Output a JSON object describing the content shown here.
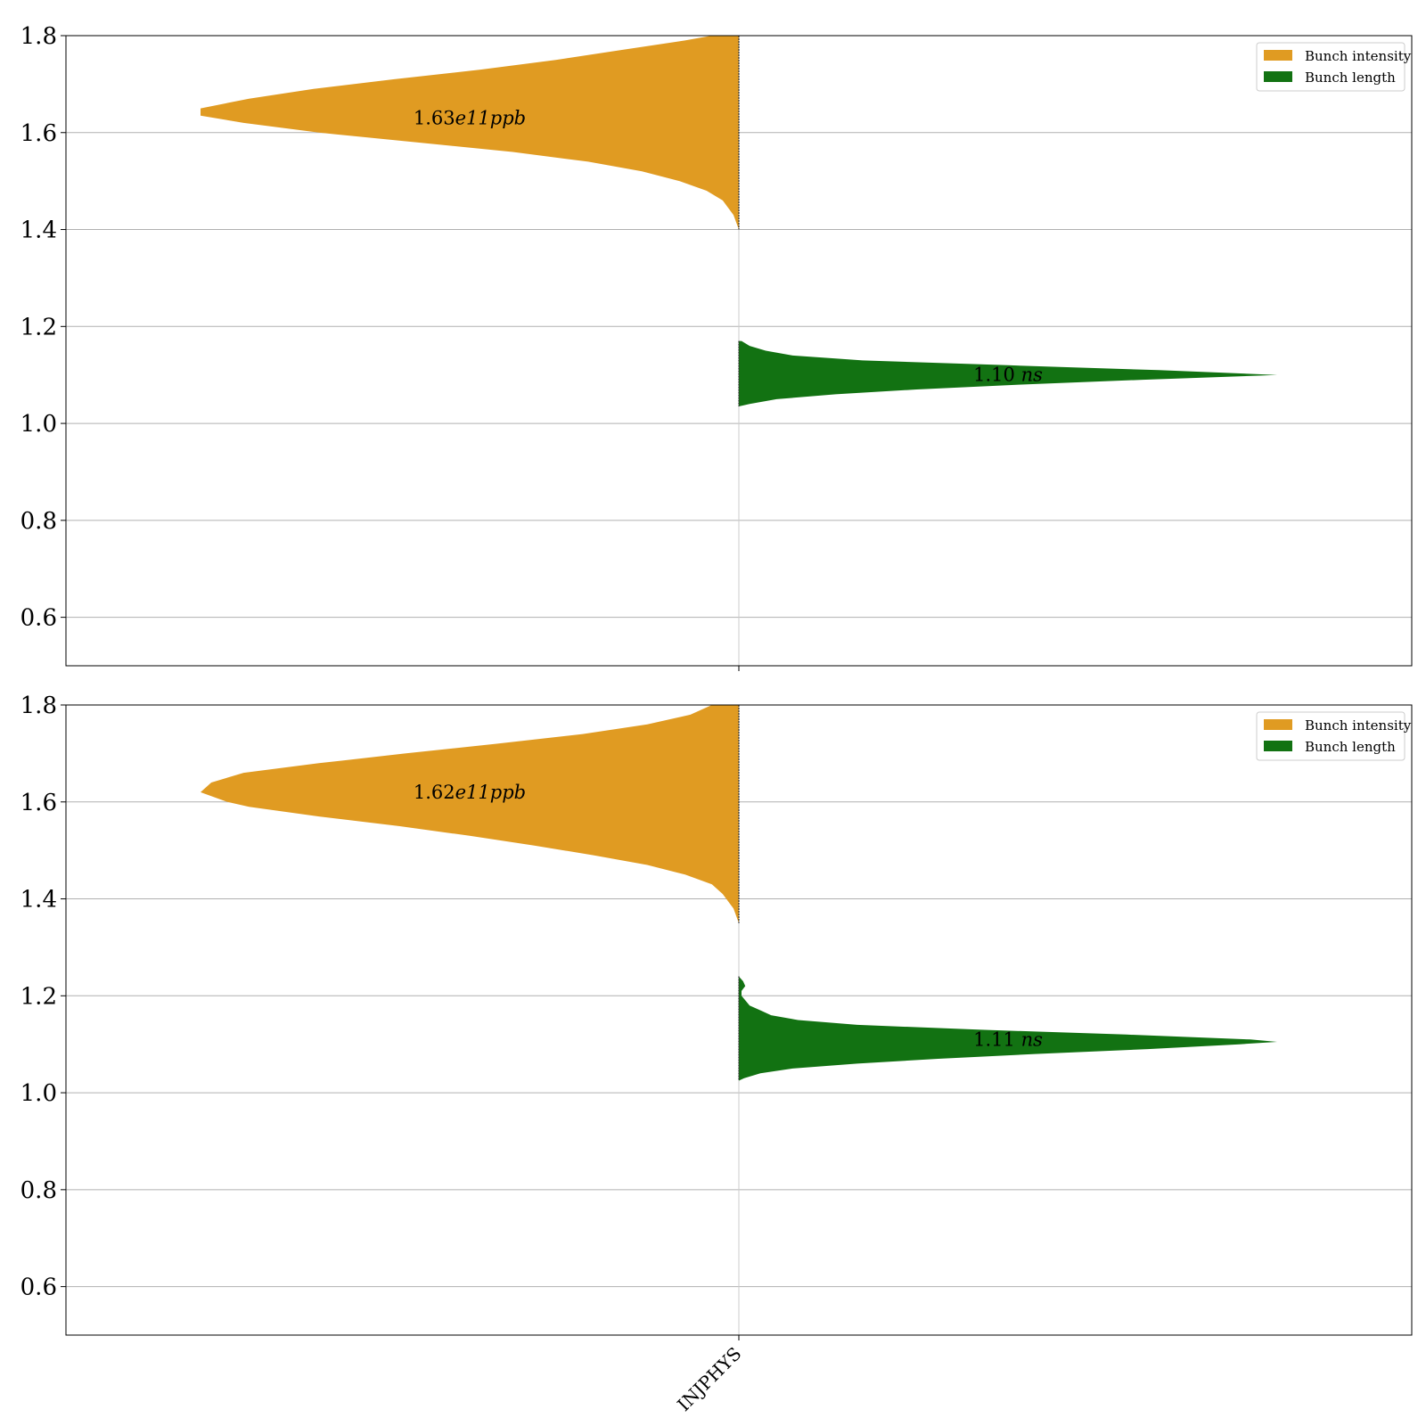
{
  "chart_data": [
    {
      "type": "violin",
      "subplot": "top",
      "categories": [
        "INJPHYS"
      ],
      "ylim": [
        0.5,
        1.8
      ],
      "yticks": [
        "0.6",
        "0.8",
        "1.0",
        "1.2",
        "1.4",
        "1.6",
        "1.8"
      ],
      "show_xtick_labels": false,
      "grid": true,
      "legend_position": "top-right",
      "series": [
        {
          "name": "Bunch intensity",
          "color": "#e09b22",
          "side": "left",
          "median": 1.63,
          "profile": [
            [
              1.4,
              0.0
            ],
            [
              1.43,
              0.01
            ],
            [
              1.46,
              0.03
            ],
            [
              1.48,
              0.06
            ],
            [
              1.5,
              0.11
            ],
            [
              1.52,
              0.18
            ],
            [
              1.54,
              0.28
            ],
            [
              1.56,
              0.42
            ],
            [
              1.58,
              0.6
            ],
            [
              1.6,
              0.78
            ],
            [
              1.62,
              0.92
            ],
            [
              1.635,
              1.0
            ],
            [
              1.65,
              1.0
            ],
            [
              1.67,
              0.91
            ],
            [
              1.69,
              0.79
            ],
            [
              1.71,
              0.64
            ],
            [
              1.73,
              0.48
            ],
            [
              1.75,
              0.34
            ],
            [
              1.77,
              0.22
            ],
            [
              1.79,
              0.1
            ],
            [
              1.8,
              0.05
            ]
          ],
          "annotation": {
            "number": "1.63",
            "rest": "e11",
            "unit": "ppb"
          }
        },
        {
          "name": "Bunch length",
          "color": "#127212",
          "side": "right",
          "median": 1.1,
          "profile": [
            [
              1.035,
              0.0
            ],
            [
              1.04,
              0.02
            ],
            [
              1.05,
              0.07
            ],
            [
              1.06,
              0.18
            ],
            [
              1.07,
              0.33
            ],
            [
              1.08,
              0.52
            ],
            [
              1.09,
              0.75
            ],
            [
              1.1,
              1.0
            ],
            [
              1.11,
              0.78
            ],
            [
              1.12,
              0.5
            ],
            [
              1.13,
              0.23
            ],
            [
              1.14,
              0.1
            ],
            [
              1.15,
              0.05
            ],
            [
              1.16,
              0.02
            ],
            [
              1.17,
              0.005
            ]
          ],
          "annotation": {
            "number": "1.10",
            "rest": "",
            "unit": "ns"
          }
        }
      ]
    },
    {
      "type": "violin",
      "subplot": "bottom",
      "categories": [
        "INJPHYS"
      ],
      "ylim": [
        0.5,
        1.8
      ],
      "yticks": [
        "0.6",
        "0.8",
        "1.0",
        "1.2",
        "1.4",
        "1.6",
        "1.8"
      ],
      "show_xtick_labels": true,
      "grid": true,
      "legend_position": "top-right",
      "series": [
        {
          "name": "Bunch intensity",
          "color": "#e09b22",
          "side": "left",
          "median": 1.62,
          "profile": [
            [
              1.35,
              0.0
            ],
            [
              1.38,
              0.01
            ],
            [
              1.41,
              0.03
            ],
            [
              1.43,
              0.05
            ],
            [
              1.45,
              0.1
            ],
            [
              1.47,
              0.17
            ],
            [
              1.49,
              0.27
            ],
            [
              1.51,
              0.38
            ],
            [
              1.53,
              0.5
            ],
            [
              1.55,
              0.63
            ],
            [
              1.57,
              0.78
            ],
            [
              1.59,
              0.91
            ],
            [
              1.6,
              0.95
            ],
            [
              1.62,
              1.0
            ],
            [
              1.64,
              0.98
            ],
            [
              1.66,
              0.92
            ],
            [
              1.68,
              0.78
            ],
            [
              1.7,
              0.62
            ],
            [
              1.72,
              0.45
            ],
            [
              1.74,
              0.29
            ],
            [
              1.76,
              0.17
            ],
            [
              1.78,
              0.09
            ],
            [
              1.8,
              0.05
            ]
          ],
          "annotation": {
            "number": "1.62",
            "rest": "e11",
            "unit": "ppb"
          }
        },
        {
          "name": "Bunch length",
          "color": "#127212",
          "side": "right",
          "median": 1.11,
          "profile": [
            [
              1.025,
              0.0
            ],
            [
              1.03,
              0.01
            ],
            [
              1.04,
              0.04
            ],
            [
              1.05,
              0.1
            ],
            [
              1.06,
              0.22
            ],
            [
              1.07,
              0.37
            ],
            [
              1.08,
              0.55
            ],
            [
              1.09,
              0.76
            ],
            [
              1.1,
              0.93
            ],
            [
              1.105,
              1.0
            ],
            [
              1.11,
              0.95
            ],
            [
              1.12,
              0.72
            ],
            [
              1.13,
              0.45
            ],
            [
              1.14,
              0.22
            ],
            [
              1.15,
              0.11
            ],
            [
              1.16,
              0.06
            ],
            [
              1.17,
              0.04
            ],
            [
              1.18,
              0.02
            ],
            [
              1.2,
              0.005
            ],
            [
              1.21,
              0.005
            ],
            [
              1.22,
              0.012
            ],
            [
              1.23,
              0.008
            ],
            [
              1.24,
              0.0
            ]
          ],
          "annotation": {
            "number": "1.11",
            "rest": "",
            "unit": "ns"
          }
        }
      ]
    }
  ]
}
